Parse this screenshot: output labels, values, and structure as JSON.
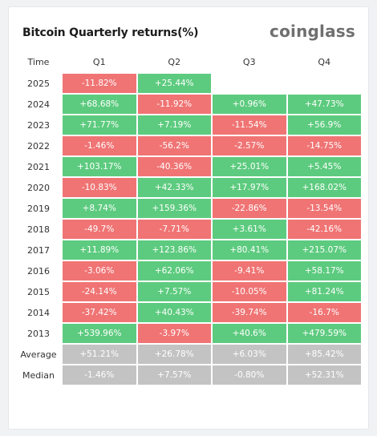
{
  "header": {
    "title": "Bitcoin Quarterly returns(%)",
    "brand": "coinglass"
  },
  "colors": {
    "positive": "#5dcb7f",
    "negative": "#f07474",
    "summary": "#c3c3c3"
  },
  "chart_data": {
    "type": "table",
    "title": "Bitcoin Quarterly returns(%)",
    "columns": [
      "Time",
      "Q1",
      "Q2",
      "Q3",
      "Q4"
    ],
    "rows": [
      {
        "label": "2025",
        "values": [
          "-11.82%",
          "+25.44%",
          "",
          ""
        ]
      },
      {
        "label": "2024",
        "values": [
          "+68.68%",
          "-11.92%",
          "+0.96%",
          "+47.73%"
        ]
      },
      {
        "label": "2023",
        "values": [
          "+71.77%",
          "+7.19%",
          "-11.54%",
          "+56.9%"
        ]
      },
      {
        "label": "2022",
        "values": [
          "-1.46%",
          "-56.2%",
          "-2.57%",
          "-14.75%"
        ]
      },
      {
        "label": "2021",
        "values": [
          "+103.17%",
          "-40.36%",
          "+25.01%",
          "+5.45%"
        ]
      },
      {
        "label": "2020",
        "values": [
          "-10.83%",
          "+42.33%",
          "+17.97%",
          "+168.02%"
        ]
      },
      {
        "label": "2019",
        "values": [
          "+8.74%",
          "+159.36%",
          "-22.86%",
          "-13.54%"
        ]
      },
      {
        "label": "2018",
        "values": [
          "-49.7%",
          "-7.71%",
          "+3.61%",
          "-42.16%"
        ]
      },
      {
        "label": "2017",
        "values": [
          "+11.89%",
          "+123.86%",
          "+80.41%",
          "+215.07%"
        ]
      },
      {
        "label": "2016",
        "values": [
          "-3.06%",
          "+62.06%",
          "-9.41%",
          "+58.17%"
        ]
      },
      {
        "label": "2015",
        "values": [
          "-24.14%",
          "+7.57%",
          "-10.05%",
          "+81.24%"
        ]
      },
      {
        "label": "2014",
        "values": [
          "-37.42%",
          "+40.43%",
          "-39.74%",
          "-16.7%"
        ]
      },
      {
        "label": "2013",
        "values": [
          "+539.96%",
          "-3.97%",
          "+40.6%",
          "+479.59%"
        ]
      }
    ],
    "summary": [
      {
        "label": "Average",
        "values": [
          "+51.21%",
          "+26.78%",
          "+6.03%",
          "+85.42%"
        ]
      },
      {
        "label": "Median",
        "values": [
          "-1.46%",
          "+7.57%",
          "-0.80%",
          "+52.31%"
        ]
      }
    ]
  }
}
